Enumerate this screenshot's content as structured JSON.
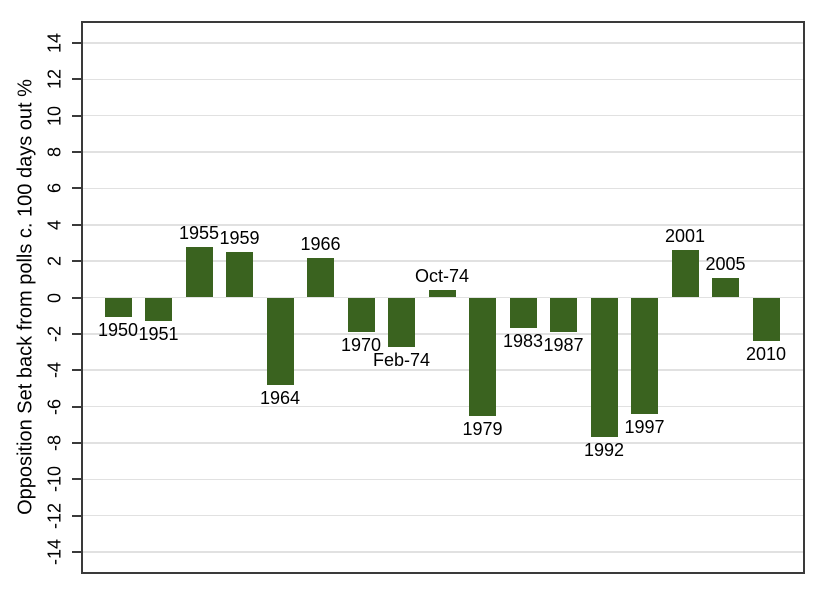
{
  "chart_data": {
    "type": "bar",
    "title": "",
    "ylabel": "Opposition Set back from polls c. 100 days out %",
    "xlabel": "",
    "categories": [
      "1950",
      "1951",
      "1955",
      "1959",
      "1964",
      "1966",
      "1970",
      "Feb-74",
      "Oct-74",
      "1979",
      "1983",
      "1987",
      "1992",
      "1997",
      "2001",
      "2005",
      "2010"
    ],
    "values": [
      -1.1,
      -1.3,
      2.8,
      2.5,
      -4.8,
      2.2,
      -1.9,
      -2.7,
      0.4,
      -6.5,
      -1.7,
      -1.9,
      -7.7,
      -6.4,
      2.6,
      1.1,
      -2.4
    ],
    "ylim": [
      -15.1,
      15.1
    ],
    "yticks": [
      -14,
      -12,
      -10,
      -8,
      -6,
      -4,
      -2,
      0,
      2,
      4,
      6,
      8,
      10,
      12,
      14
    ],
    "grid": true,
    "legend": "none",
    "notes": "bar end labels show election year; no x-axis tick labels"
  },
  "colors": {
    "bar": "#3A631F",
    "grid": "#E1E1E1",
    "axis": "#3A3A3A",
    "text": "#000000",
    "background": "#FFFFFF"
  }
}
